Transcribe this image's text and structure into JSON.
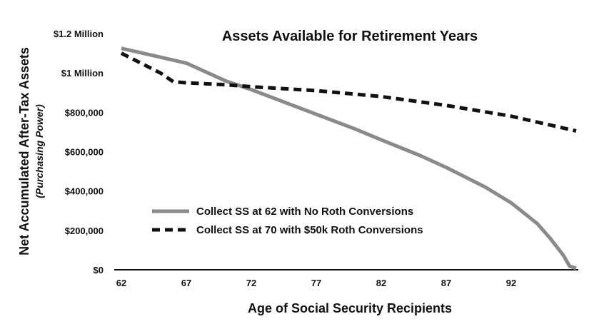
{
  "chart_data": {
    "type": "line",
    "title": "Assets Available for Retirement Years",
    "xlabel": "Age of Social Security Recipients",
    "ylabel": "Net Accumulated After-Tax Assets",
    "ylabel_sub": "(Purchasing Power)",
    "xlim": [
      62,
      97
    ],
    "ylim": [
      0,
      1200000
    ],
    "x_ticks": [
      62,
      67,
      72,
      77,
      82,
      87,
      92
    ],
    "y_ticks": [
      {
        "value": 0,
        "label": "$0"
      },
      {
        "value": 200000,
        "label": "$200,000"
      },
      {
        "value": 400000,
        "label": "$400,000"
      },
      {
        "value": 600000,
        "label": "$600,000"
      },
      {
        "value": 800000,
        "label": "$800,000"
      },
      {
        "value": 1000000,
        "label": "$1 Million"
      },
      {
        "value": 1200000,
        "label": "$1.2 Million"
      }
    ],
    "grid": false,
    "legend_position": "lower-left",
    "series": [
      {
        "name": "Collect SS at 62 with No Roth Conversions",
        "color": "#8a8a8a",
        "style": "solid",
        "points": [
          [
            62,
            1125000
          ],
          [
            67,
            1050000
          ],
          [
            70,
            960000
          ],
          [
            72,
            915000
          ],
          [
            75,
            840000
          ],
          [
            77,
            790000
          ],
          [
            80,
            715000
          ],
          [
            82,
            660000
          ],
          [
            85,
            580000
          ],
          [
            87,
            520000
          ],
          [
            90,
            420000
          ],
          [
            92,
            340000
          ],
          [
            94,
            235000
          ],
          [
            95,
            160000
          ],
          [
            96,
            75000
          ],
          [
            96.5,
            18000
          ],
          [
            97,
            8000
          ]
        ]
      },
      {
        "name": "Collect SS at 70 with $50k Roth Conversions",
        "color": "#111111",
        "style": "dashed",
        "points": [
          [
            62,
            1100000
          ],
          [
            65,
            1000000
          ],
          [
            66,
            955000
          ],
          [
            67,
            950000
          ],
          [
            70,
            940000
          ],
          [
            72,
            930000
          ],
          [
            77,
            910000
          ],
          [
            82,
            880000
          ],
          [
            87,
            835000
          ],
          [
            92,
            780000
          ],
          [
            97,
            705000
          ]
        ]
      }
    ]
  }
}
